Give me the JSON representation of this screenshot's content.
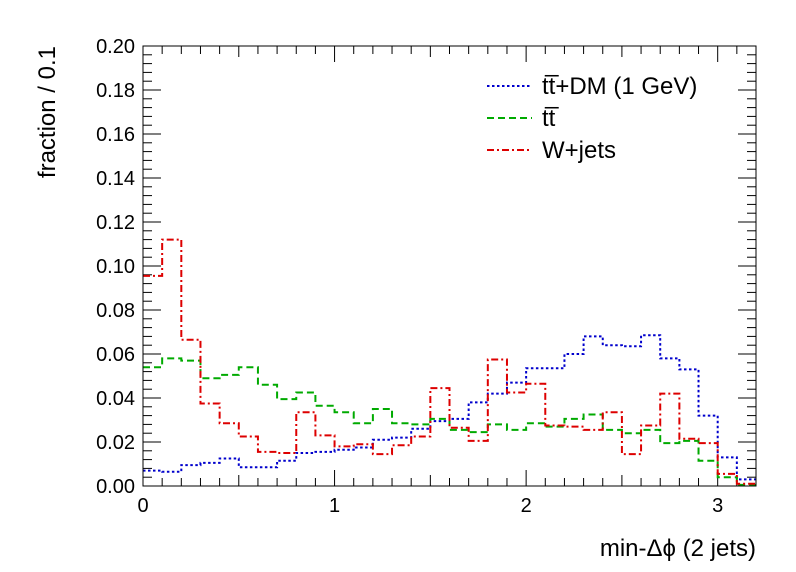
{
  "chart_data": {
    "type": "step-histogram",
    "xlabel": "min-Δϕ (2 jets)",
    "ylabel": "fraction / 0.1",
    "xlim": [
      0,
      3.2
    ],
    "ylim": [
      0,
      0.2
    ],
    "x_ticks": [
      0,
      1,
      2,
      3
    ],
    "x_tick_labels": [
      "0",
      "1",
      "2",
      "3"
    ],
    "y_ticks": [
      0,
      0.02,
      0.04,
      0.06,
      0.08,
      0.1,
      0.12,
      0.14,
      0.16,
      0.18,
      0.2
    ],
    "y_tick_labels": [
      "0.00",
      "0.02",
      "0.04",
      "0.06",
      "0.08",
      "0.10",
      "0.12",
      "0.14",
      "0.16",
      "0.18",
      "0.20"
    ],
    "bin_width": 0.1,
    "bin_edges_start": 0,
    "legend_position": "top-right",
    "series": [
      {
        "name": "t̅t̅+DM (1 GeV)",
        "label": "tt̅+DM (1 GeV)",
        "color": "#0000cc",
        "dash": "dotted",
        "values": [
          0.007,
          0.0065,
          0.0095,
          0.0105,
          0.0125,
          0.0085,
          0.0085,
          0.0115,
          0.015,
          0.0155,
          0.0165,
          0.0175,
          0.021,
          0.022,
          0.026,
          0.0295,
          0.0305,
          0.038,
          0.042,
          0.047,
          0.0535,
          0.0535,
          0.06,
          0.068,
          0.064,
          0.0635,
          0.0685,
          0.058,
          0.053,
          0.032,
          0.013,
          0.003
        ]
      },
      {
        "name": "tt̅",
        "label": "tt̅",
        "color": "#00aa00",
        "dash": "dashed",
        "values": [
          0.054,
          0.058,
          0.057,
          0.049,
          0.0505,
          0.054,
          0.046,
          0.0395,
          0.0425,
          0.0365,
          0.0335,
          0.0285,
          0.035,
          0.0285,
          0.028,
          0.0305,
          0.0255,
          0.0245,
          0.028,
          0.0255,
          0.0285,
          0.027,
          0.0305,
          0.0325,
          0.0255,
          0.024,
          0.0255,
          0.0195,
          0.0205,
          0.0115,
          0.004,
          0.0005
        ]
      },
      {
        "name": "W+jets",
        "label": "W+jets",
        "color": "#dd0000",
        "dash": "dashdot",
        "values": [
          0.0955,
          0.112,
          0.0665,
          0.0375,
          0.0285,
          0.0225,
          0.0155,
          0.015,
          0.0335,
          0.023,
          0.018,
          0.019,
          0.0145,
          0.0185,
          0.0225,
          0.0445,
          0.0265,
          0.0205,
          0.0575,
          0.0425,
          0.0465,
          0.0275,
          0.027,
          0.0255,
          0.0335,
          0.0145,
          0.0275,
          0.042,
          0.0215,
          0.0195,
          0.0055,
          0.001
        ]
      }
    ]
  }
}
